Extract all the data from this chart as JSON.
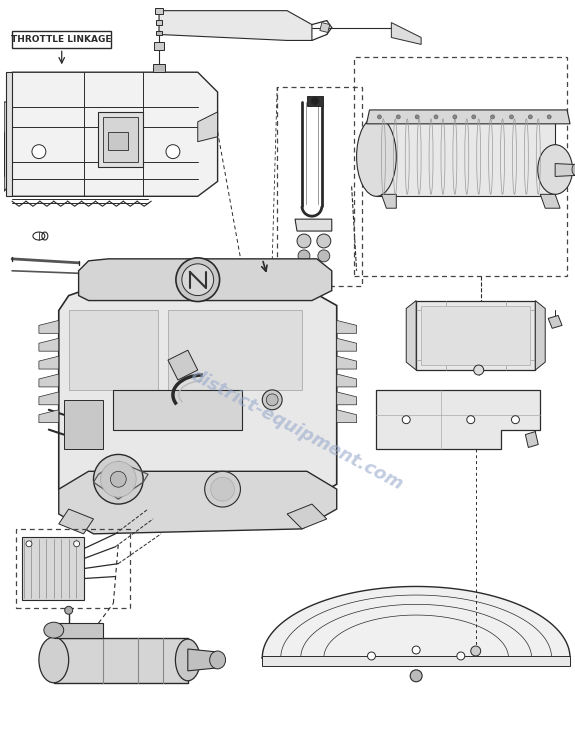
{
  "bg_color": "#ffffff",
  "lc": "#2a2a2a",
  "dc": "#444444",
  "wm_color": "#99aacc",
  "throttle_label": "THROTTLE LINKAGE",
  "watermark": "district-equipment.com",
  "fig_w": 5.75,
  "fig_h": 7.52,
  "dpi": 100,
  "engine_fc": "#e8e8e8",
  "engine_detail_fc": "#d8d8d8",
  "bracket_fc": "#ebebeb",
  "muffler_fc": "#e0e0e0",
  "deck_fc": "#f0f0f0"
}
